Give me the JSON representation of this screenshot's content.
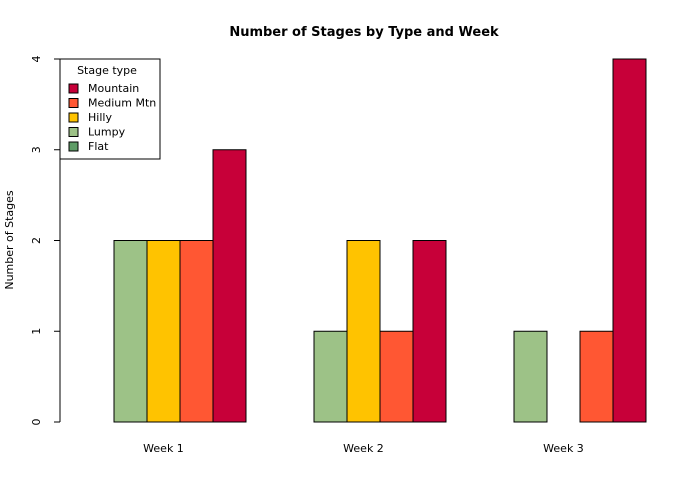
{
  "chart_data": {
    "type": "bar",
    "title": "Number of Stages by Type and Week",
    "xlabel": "",
    "ylabel": "Number of Stages",
    "ylim": [
      0,
      4
    ],
    "yticks": [
      "0",
      "1",
      "2",
      "3",
      "4"
    ],
    "categories": [
      "Week 1",
      "Week 2",
      "Week 3"
    ],
    "series": [
      {
        "name": "Flat",
        "color": "#5E9C66",
        "values": [
          0,
          0,
          0
        ]
      },
      {
        "name": "Lumpy",
        "color": "#9DC287",
        "values": [
          2,
          1,
          1
        ]
      },
      {
        "name": "Hilly",
        "color": "#FFC300",
        "values": [
          2,
          2,
          0
        ]
      },
      {
        "name": "Medium Mtn",
        "color": "#FF5733",
        "values": [
          2,
          1,
          1
        ]
      },
      {
        "name": "Mountain",
        "color": "#C70039",
        "values": [
          3,
          2,
          4
        ]
      }
    ],
    "legend": {
      "title": "Stage type",
      "position": "top-left",
      "order": [
        "Mountain",
        "Medium Mtn",
        "Hilly",
        "Lumpy",
        "Flat"
      ]
    },
    "grid": false
  }
}
